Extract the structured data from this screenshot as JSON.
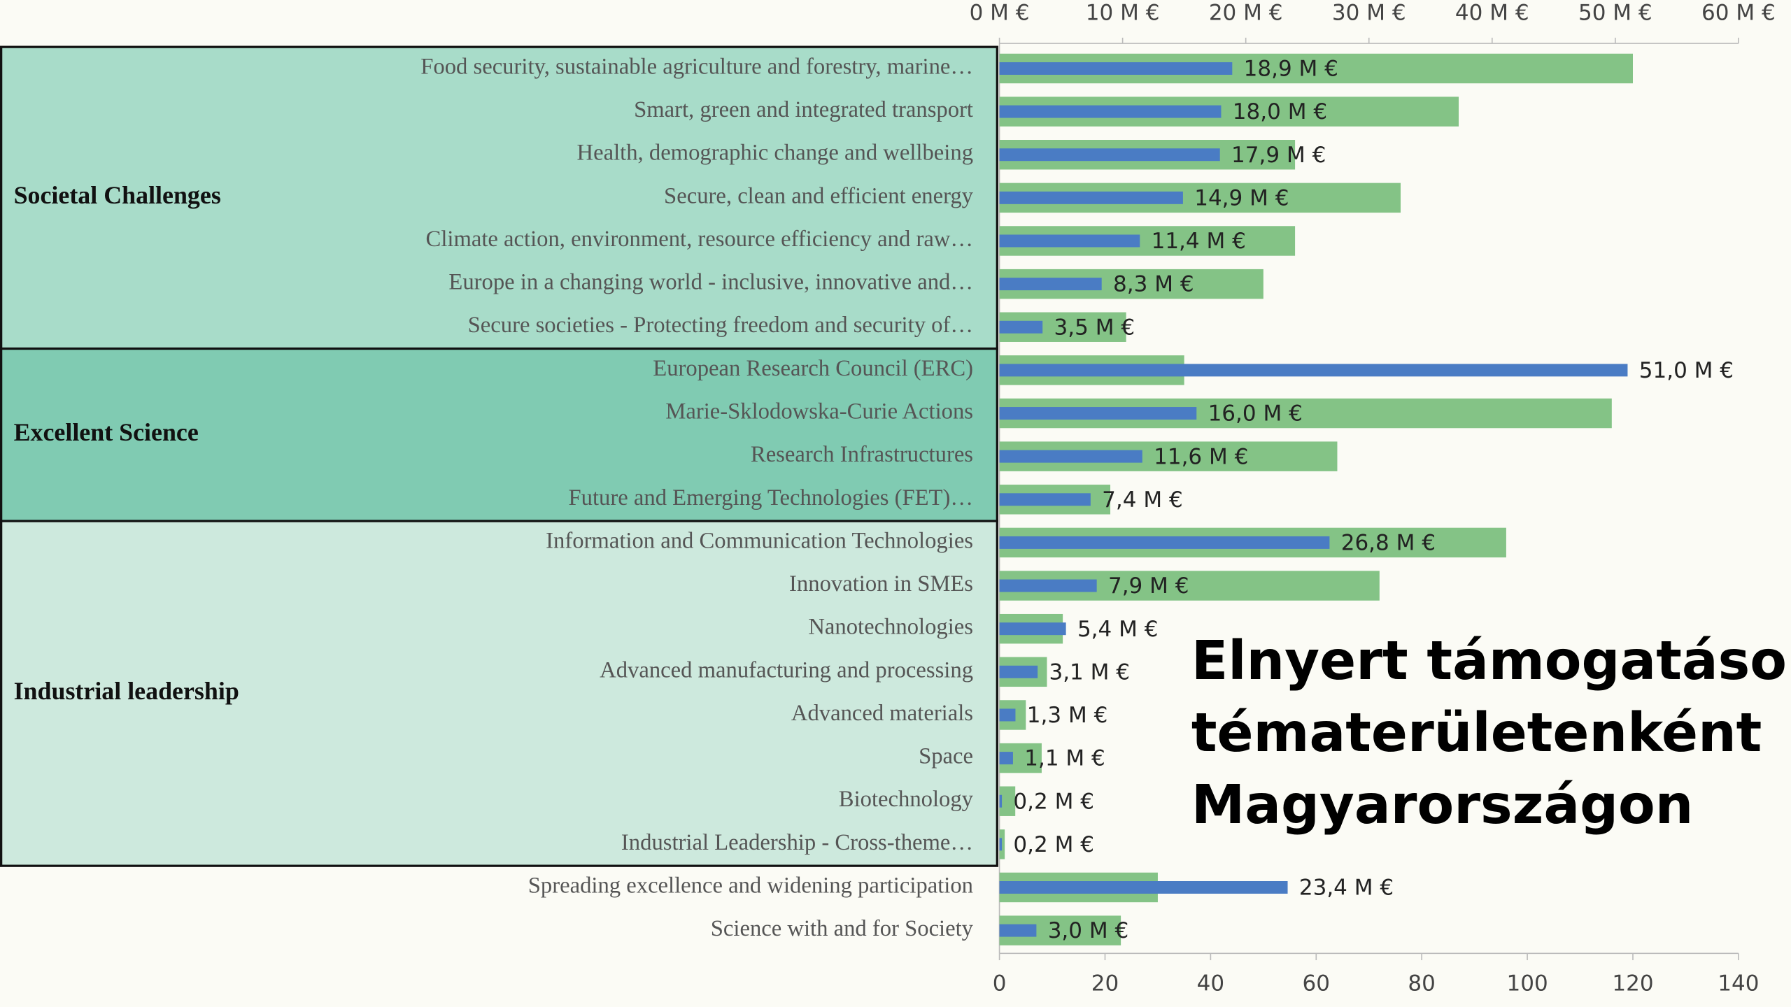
{
  "chart_data": {
    "type": "bar",
    "orientation": "horizontal",
    "title": [
      "Elnyert támogatások",
      "tématerületenként",
      "Magyarországon"
    ],
    "categories": [
      "Food security, sustainable agriculture and forestry, marine…",
      "Smart, green and integrated transport",
      "Health, demographic change and wellbeing",
      "Secure, clean and efficient energy",
      "Climate action, environment, resource efficiency and raw…",
      "Europe in a changing world - inclusive, innovative and…",
      "Secure societies - Protecting freedom and security of…",
      "European Research Council (ERC)",
      "Marie-Sklodowska-Curie Actions",
      "Research Infrastructures",
      "Future and Emerging Technologies (FET)…",
      "Information and Communication Technologies",
      "Innovation in SMEs",
      "Nanotechnologies",
      "Advanced manufacturing and processing",
      "Advanced materials",
      "Space",
      "Biotechnology",
      "Industrial Leadership - Cross-theme…",
      "Spreading excellence and widening participation",
      "Science with and for Society"
    ],
    "groups": [
      {
        "label": "Societal Challenges",
        "size": 7,
        "color": "#a8dcc9"
      },
      {
        "label": "Excellent Science",
        "size": 4,
        "color": "#80cbb2"
      },
      {
        "label": "Industrial leadership",
        "size": 8,
        "color": "#cde9dd"
      }
    ],
    "series": [
      {
        "color": "#4a7cc4",
        "axis": "x2",
        "values": [
          18.9,
          18.0,
          17.9,
          14.9,
          11.4,
          8.3,
          3.5,
          51.0,
          16.0,
          11.6,
          7.4,
          26.8,
          7.9,
          5.4,
          3.1,
          1.3,
          1.1,
          0.2,
          0.2,
          23.4,
          3.0
        ],
        "value_labels": [
          "18,9 M €",
          "18,0 M €",
          "17,9 M €",
          "14,9 M €",
          "11,4 M €",
          "8,3 M €",
          "3,5 M €",
          "51,0 M €",
          "16,0 M €",
          "11,6 M €",
          "7,4 M €",
          "26,8 M €",
          "7,9 M €",
          "5,4 M €",
          "3,1 M €",
          "1,3 M €",
          "1,1 M €",
          "0,2 M €",
          "0,2 M €",
          "23,4 M €",
          "3,0 M €"
        ]
      },
      {
        "color": "#84c386",
        "values": [
          120,
          87,
          56,
          76,
          56,
          50,
          24,
          35,
          116,
          64,
          21,
          96,
          72,
          12,
          9,
          5,
          8,
          3,
          1,
          30,
          23
        ]
      }
    ],
    "xlim": [
      0,
      140
    ],
    "xticks": [
      0,
      20,
      40,
      60,
      80,
      100,
      120,
      140
    ],
    "x2lim": [
      0,
      60
    ],
    "x2ticks": [
      {
        "value": 0,
        "label": "0 M €"
      },
      {
        "value": 10,
        "label": "10 M €"
      },
      {
        "value": 20,
        "label": "20 M €"
      },
      {
        "value": 30,
        "label": "30 M €"
      },
      {
        "value": 40,
        "label": "40 M €"
      },
      {
        "value": 50,
        "label": "50 M €"
      },
      {
        "value": 60,
        "label": "60 M €"
      }
    ]
  }
}
